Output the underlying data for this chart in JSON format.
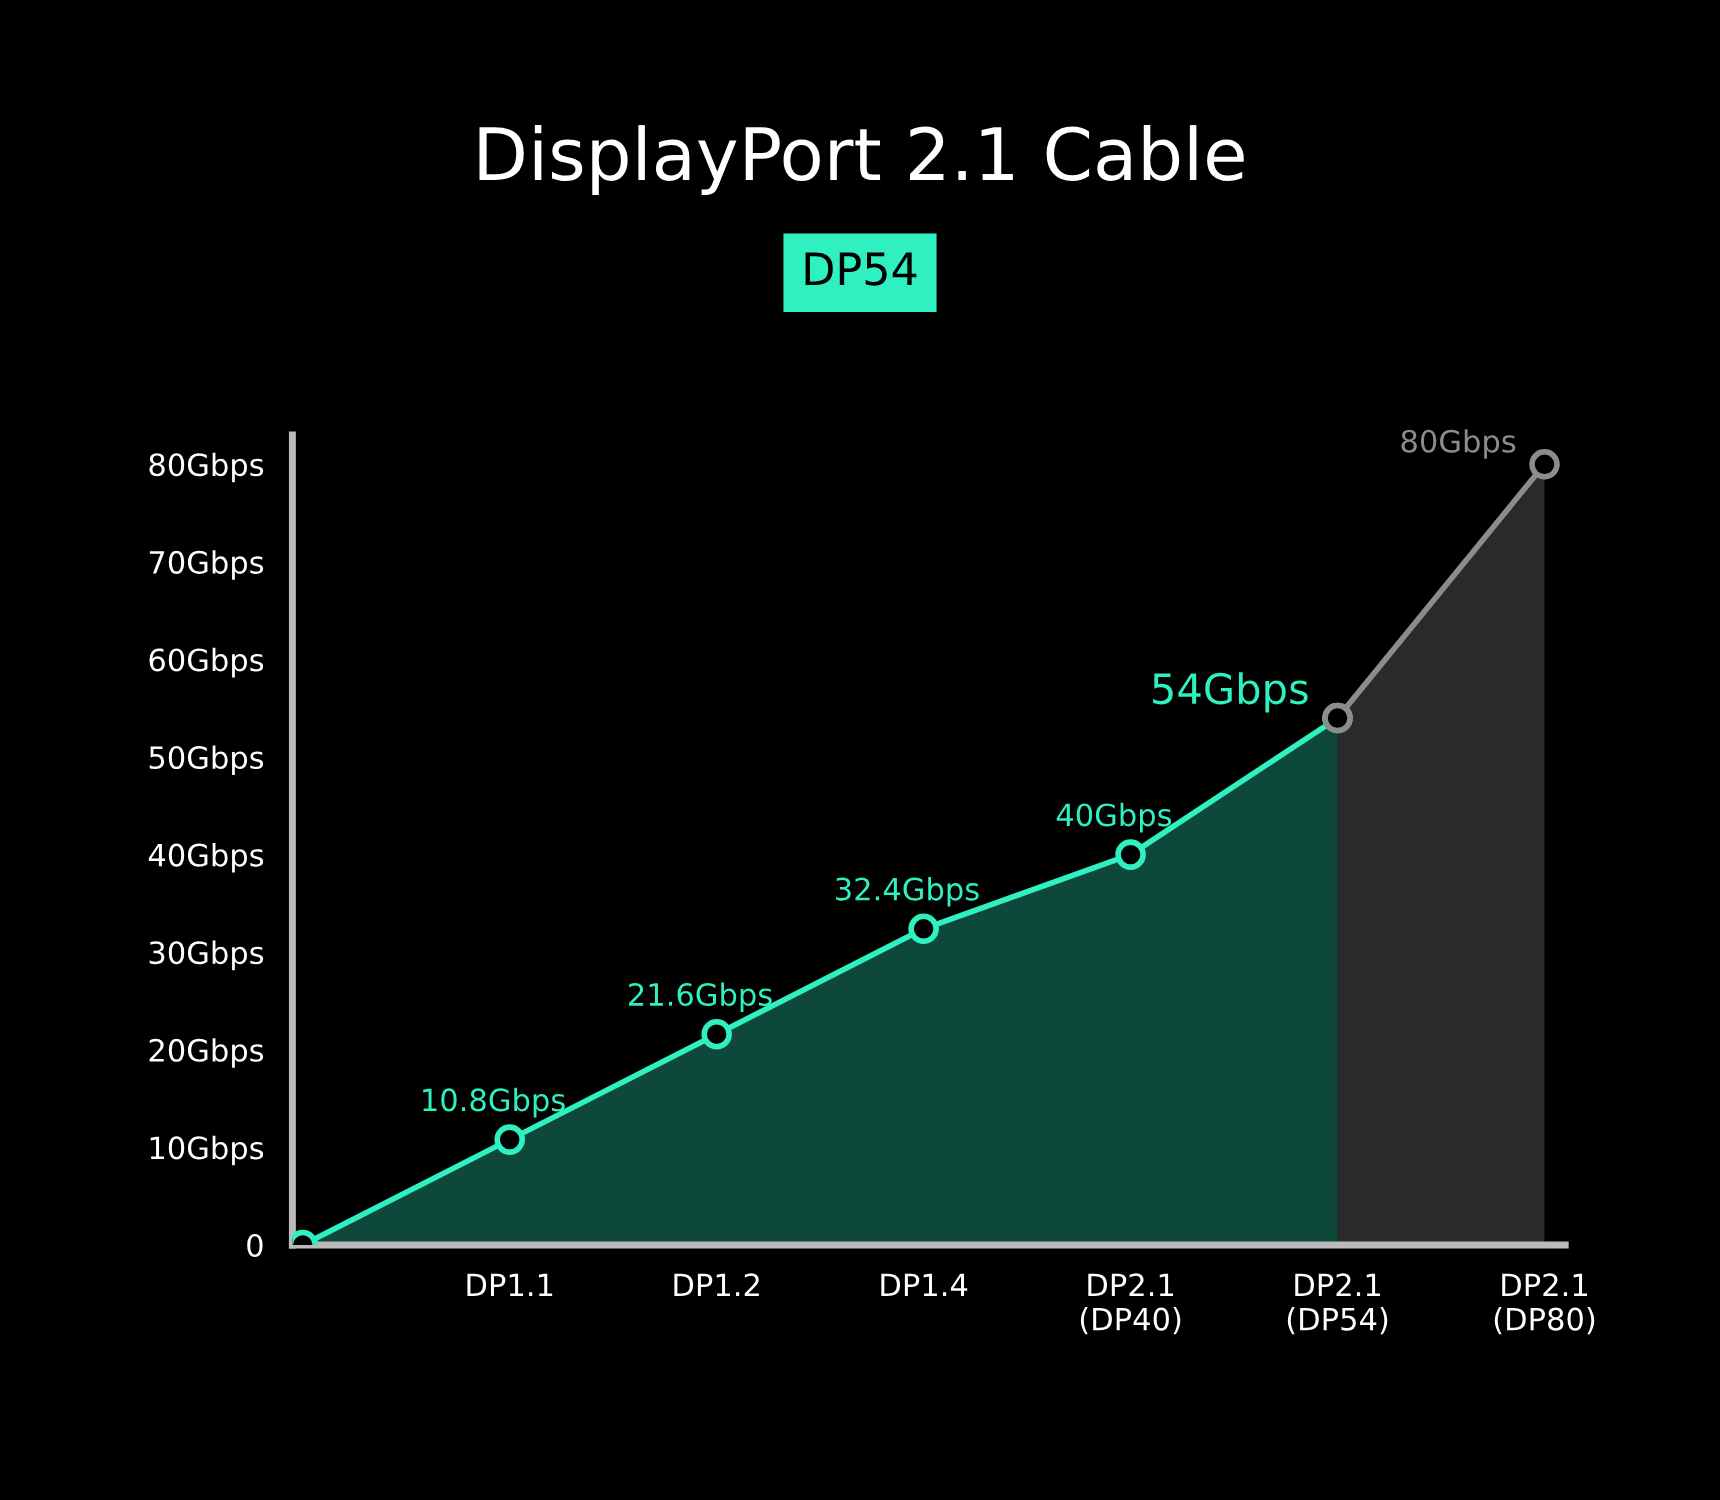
{
  "chart_data": {
    "type": "area",
    "title": "DisplayPort 2.1 Cable",
    "subtitle": "DP54",
    "categories": [
      null,
      "DP1.1",
      "DP1.2",
      "DP1.4",
      "DP2.1\n(DP40)",
      "DP2.1\n(DP54)",
      "DP2.1\n(DP80)"
    ],
    "series": [
      {
        "color": "#2ef0c0",
        "values": [
          0,
          10.8,
          21.6,
          32.4,
          40,
          54,
          null
        ],
        "value_labels": [
          null,
          "10.8Gbps",
          "21.6Gbps",
          "32.4Gbps",
          "40Gbps",
          "54Gbps",
          null
        ]
      },
      {
        "color": "#8c8c8c",
        "values": [
          null,
          null,
          null,
          null,
          null,
          54,
          80
        ],
        "value_labels": [
          null,
          null,
          null,
          null,
          null,
          null,
          "80Gbps"
        ]
      }
    ],
    "ylim": [
      0,
      83
    ],
    "yticks": [
      0,
      {
        "value": 10,
        "label": "10Gbps"
      },
      {
        "value": 20,
        "label": "20Gbps"
      },
      {
        "value": 30,
        "label": "30Gbps"
      },
      {
        "value": 40,
        "label": "40Gbps"
      },
      {
        "value": 50,
        "label": "50Gbps"
      },
      {
        "value": 60,
        "label": "60Gbps"
      },
      {
        "value": 70,
        "label": "70Gbps"
      },
      {
        "value": 80,
        "label": "80Gbps"
      }
    ],
    "marker": "circle",
    "grid": false,
    "legend": false
  }
}
